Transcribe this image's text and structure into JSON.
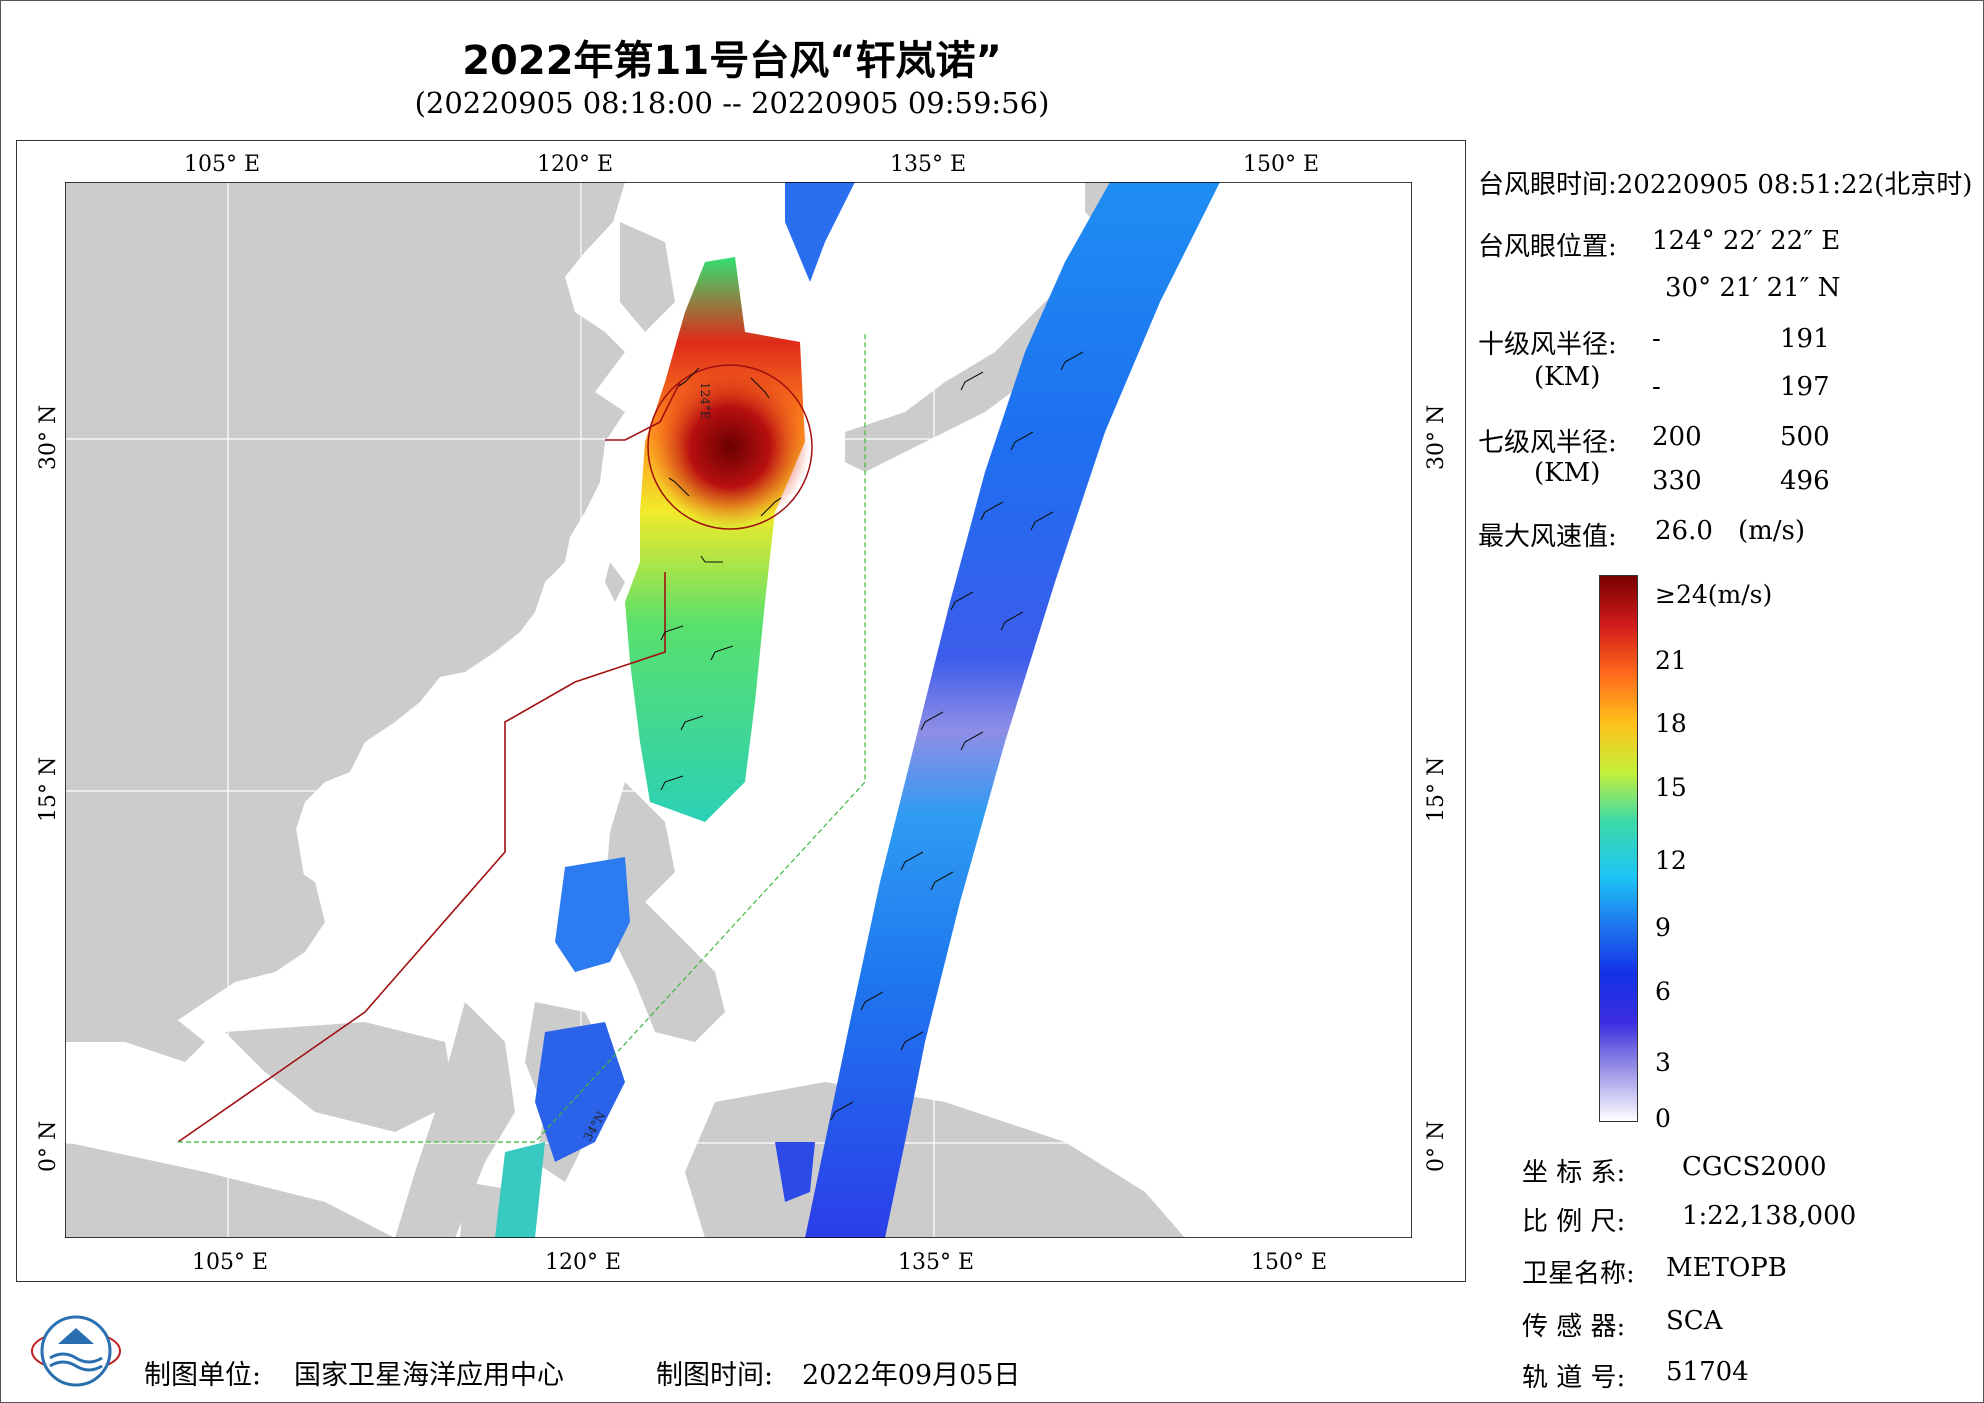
{
  "title": "2022年第11号台风“轩岚诺”",
  "subtitle": "(20220905 08:18:00 -- 20220905 09:59:56)",
  "map": {
    "lon_labels_top": [
      "105° E",
      "120° E",
      "135° E",
      "150° E"
    ],
    "lon_labels_bottom": [
      "105° E",
      "120° E",
      "135° E",
      "150° E"
    ],
    "lat_labels": [
      "30° N",
      "15° N",
      "0° N"
    ],
    "extent": {
      "lon": [
        98,
        155.5
      ],
      "lat": [
        -4,
        34
      ]
    },
    "track_label_a": "124°E",
    "track_label_b": "34°N"
  },
  "info": {
    "eye_time_label": "台风眼时间:",
    "eye_time_value": "20220905 08:51:22(北京时)",
    "eye_pos_label": "台风眼位置:",
    "eye_lon": "124° 22′ 22″ E",
    "eye_lat": "30° 21′ 21″ N",
    "r10_label": "十级风半径:",
    "r10_unit": "(KM)",
    "r10_row1": [
      "-",
      "191"
    ],
    "r10_row2": [
      "-",
      "197"
    ],
    "r7_label": "七级风半径:",
    "r7_unit": "(KM)",
    "r7_row1": [
      "200",
      "500"
    ],
    "r7_row2": [
      "330",
      "496"
    ],
    "max_label": "最大风速值:",
    "max_value": "26.0",
    "max_unit": "(m/s)"
  },
  "colorbar": {
    "top_label": "≥24(m/s)",
    "ticks": [
      "21",
      "18",
      "15",
      "12",
      "9",
      "6",
      "3",
      "0"
    ],
    "colors": [
      "#7a0000",
      "#d21b1b",
      "#ff6a1a",
      "#ffc21a",
      "#c4f03a",
      "#3cd9a8",
      "#1ec6f5",
      "#1e78ef",
      "#1430e6",
      "#3c2ee0",
      "#9e98e6",
      "#ffffff"
    ]
  },
  "meta": {
    "crs_label": "坐 标 系:",
    "crs_value": "CGCS2000",
    "scale_label": "比 例 尺:",
    "scale_value": "1:22,138,000",
    "sat_label": "卫星名称:",
    "sat_value": "METOPB",
    "sensor_label": "传 感 器:",
    "sensor_value": "SCA",
    "orbit_label": "轨 道 号:",
    "orbit_value": "51704"
  },
  "footer": {
    "maker_label": "制图单位:",
    "maker_value": "国家卫星海洋应用中心",
    "date_label": "制图时间:",
    "date_value": "2022年09月05日"
  }
}
